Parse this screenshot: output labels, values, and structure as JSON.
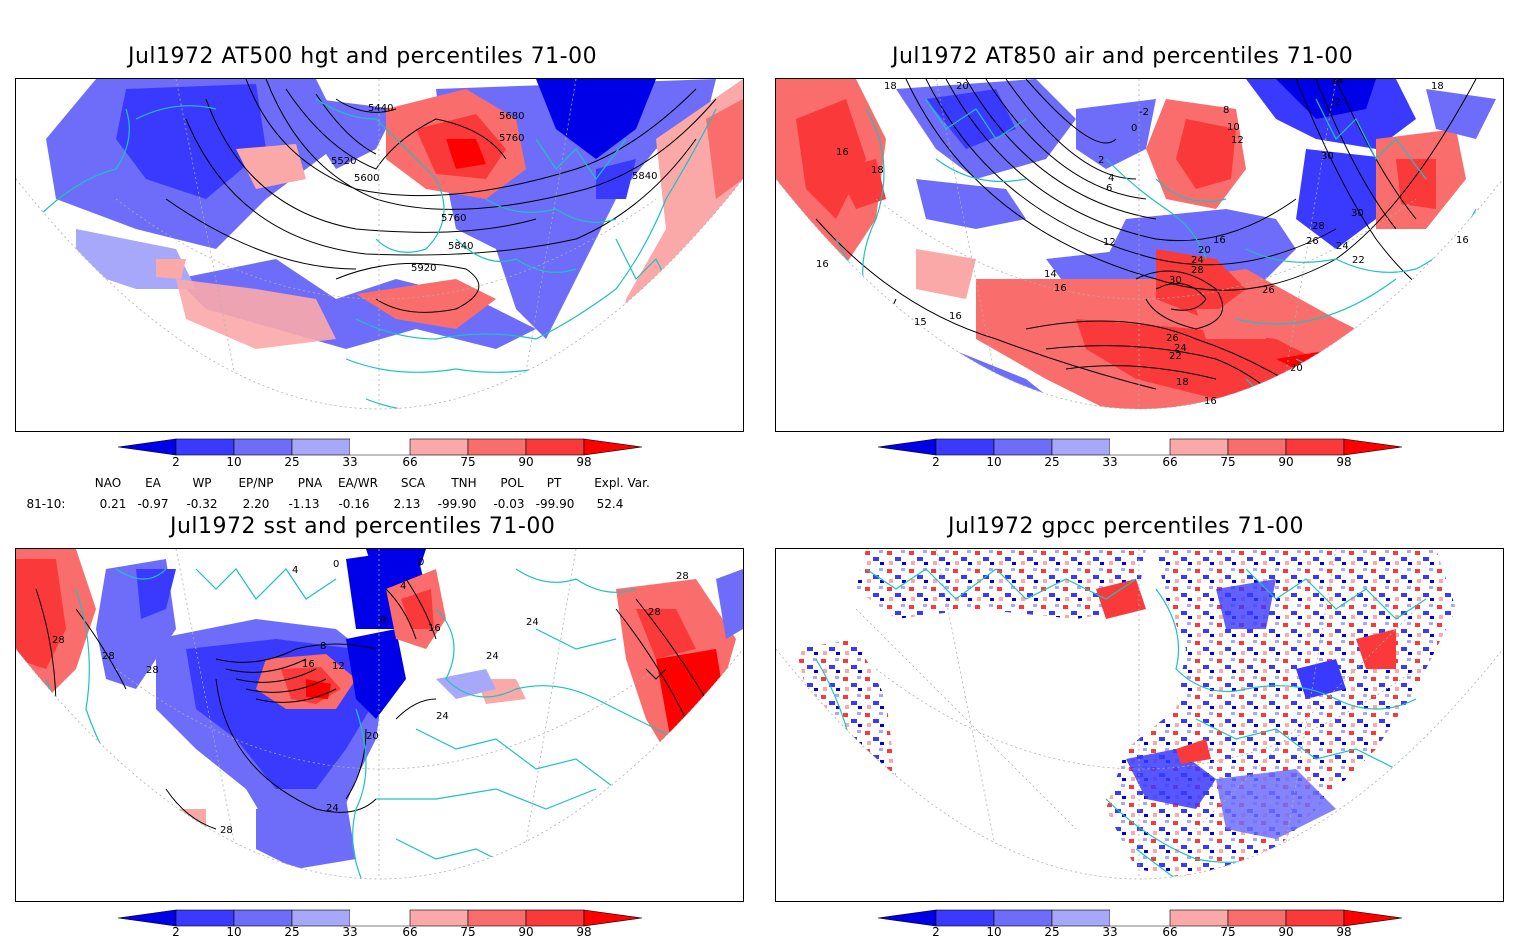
{
  "panels": [
    {
      "id": "p1",
      "title": "Jul1972 AT500 hgt and percentiles 71-00",
      "contour_labels": [
        "5440",
        "5680",
        "5760",
        "5520",
        "5600",
        "5840",
        "5760",
        "5840",
        "5920"
      ]
    },
    {
      "id": "p2",
      "title": "Jul1972 AT850 air and percentiles 71-00",
      "contour_labels": [
        "18",
        "20",
        "24",
        "18",
        "-2",
        "0",
        "-2",
        "8",
        "10",
        "12",
        "16",
        "18",
        "2",
        "4",
        "6",
        "12",
        "30",
        "30",
        "28",
        "26",
        "24",
        "22",
        "16",
        "16",
        "20",
        "24",
        "28",
        "30",
        "14",
        "16",
        "26",
        "16",
        "15",
        "16",
        "26",
        "24",
        "22",
        "18",
        "20",
        "16"
      ]
    },
    {
      "id": "p3",
      "title": "Jul1972 sst and percentiles 71-00",
      "contour_labels": [
        "0",
        "4",
        "0",
        "4",
        "8",
        "16",
        "28",
        "28",
        "28",
        "28",
        "8",
        "16",
        "12",
        "20",
        "24",
        "24",
        "24",
        "24",
        "28",
        "28"
      ]
    },
    {
      "id": "p4",
      "title": "Jul1972 gpcc percentiles 71-00",
      "contour_labels": []
    }
  ],
  "colorbar": {
    "ticks": [
      "2",
      "10",
      "25",
      "33",
      "66",
      "75",
      "90",
      "98"
    ],
    "colors": {
      "c1": "#0000e8",
      "c2": "#3a3aff",
      "c3": "#6d6dfa",
      "c4": "#a8a8fa",
      "w": "#ffffff",
      "c5": "#fba8a8",
      "c6": "#fa6d6d",
      "c7": "#fa3a3a",
      "c8": "#ff0000"
    }
  },
  "indices": {
    "names": [
      "NAO",
      "EA",
      "WP",
      "EP/NP",
      "PNA",
      "EA/WR",
      "SCA",
      "TNH",
      "POL",
      "PT",
      "Expl. Var."
    ],
    "row_label": "81-10:",
    "values": [
      "0.21",
      "-0.97",
      "-0.32",
      "2.20",
      "-1.13",
      "-0.16",
      "2.13",
      "-99.90",
      "-0.03",
      "-99.90",
      "52.4"
    ]
  },
  "colors": {
    "coast": "#20c0c0",
    "grid": "#b0b0b0",
    "contour": "#000000"
  }
}
